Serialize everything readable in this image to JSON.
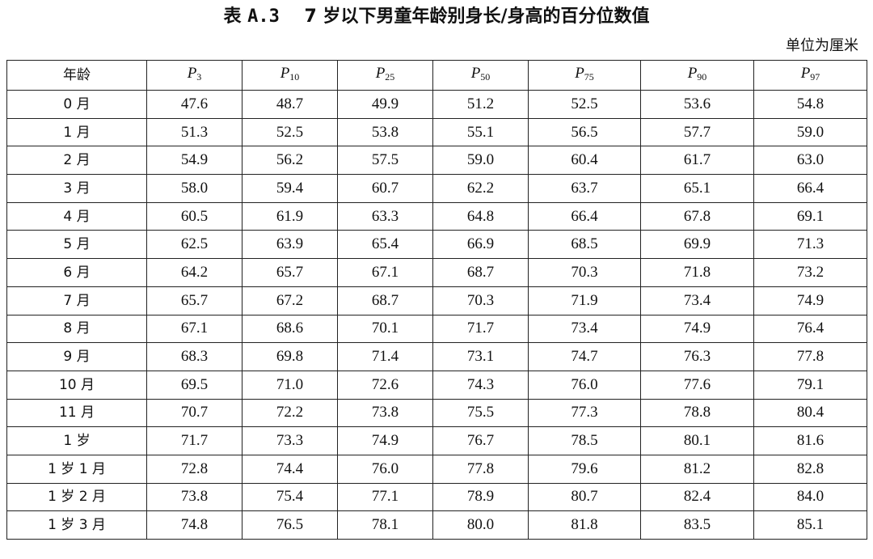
{
  "title": {
    "prefix": "表",
    "code": "A.3",
    "text": "7 岁以下男童年龄别身长/身高的百分位数值"
  },
  "unit_note": "单位为厘米",
  "table": {
    "age_header": "年龄",
    "percentile_symbol": "P",
    "percentiles": [
      "3",
      "10",
      "25",
      "50",
      "75",
      "90",
      "97"
    ],
    "rows": [
      {
        "age": "0 月",
        "values": [
          "47.6",
          "48.7",
          "49.9",
          "51.2",
          "52.5",
          "53.6",
          "54.8"
        ]
      },
      {
        "age": "1 月",
        "values": [
          "51.3",
          "52.5",
          "53.8",
          "55.1",
          "56.5",
          "57.7",
          "59.0"
        ]
      },
      {
        "age": "2 月",
        "values": [
          "54.9",
          "56.2",
          "57.5",
          "59.0",
          "60.4",
          "61.7",
          "63.0"
        ]
      },
      {
        "age": "3 月",
        "values": [
          "58.0",
          "59.4",
          "60.7",
          "62.2",
          "63.7",
          "65.1",
          "66.4"
        ]
      },
      {
        "age": "4 月",
        "values": [
          "60.5",
          "61.9",
          "63.3",
          "64.8",
          "66.4",
          "67.8",
          "69.1"
        ]
      },
      {
        "age": "5 月",
        "values": [
          "62.5",
          "63.9",
          "65.4",
          "66.9",
          "68.5",
          "69.9",
          "71.3"
        ]
      },
      {
        "age": "6 月",
        "values": [
          "64.2",
          "65.7",
          "67.1",
          "68.7",
          "70.3",
          "71.8",
          "73.2"
        ]
      },
      {
        "age": "7 月",
        "values": [
          "65.7",
          "67.2",
          "68.7",
          "70.3",
          "71.9",
          "73.4",
          "74.9"
        ]
      },
      {
        "age": "8 月",
        "values": [
          "67.1",
          "68.6",
          "70.1",
          "71.7",
          "73.4",
          "74.9",
          "76.4"
        ]
      },
      {
        "age": "9 月",
        "values": [
          "68.3",
          "69.8",
          "71.4",
          "73.1",
          "74.7",
          "76.3",
          "77.8"
        ]
      },
      {
        "age": "10 月",
        "values": [
          "69.5",
          "71.0",
          "72.6",
          "74.3",
          "76.0",
          "77.6",
          "79.1"
        ]
      },
      {
        "age": "11 月",
        "values": [
          "70.7",
          "72.2",
          "73.8",
          "75.5",
          "77.3",
          "78.8",
          "80.4"
        ]
      },
      {
        "age": "1 岁",
        "values": [
          "71.7",
          "73.3",
          "74.9",
          "76.7",
          "78.5",
          "80.1",
          "81.6"
        ]
      },
      {
        "age": "1 岁 1 月",
        "values": [
          "72.8",
          "74.4",
          "76.0",
          "77.8",
          "79.6",
          "81.2",
          "82.8"
        ]
      },
      {
        "age": "1 岁 2 月",
        "values": [
          "73.8",
          "75.4",
          "77.1",
          "78.9",
          "80.7",
          "82.4",
          "84.0"
        ]
      },
      {
        "age": "1 岁 3 月",
        "values": [
          "74.8",
          "76.5",
          "78.1",
          "80.0",
          "81.8",
          "83.5",
          "85.1"
        ]
      }
    ]
  }
}
